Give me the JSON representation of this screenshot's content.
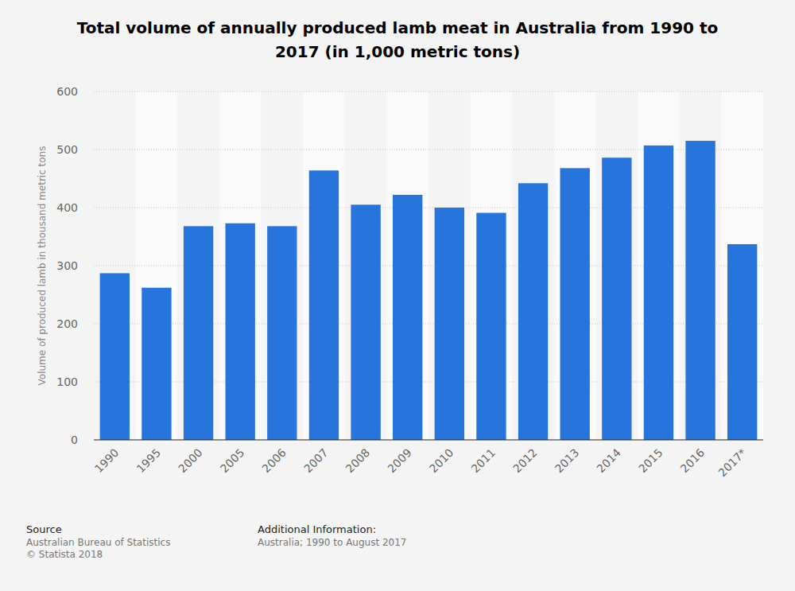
{
  "chart_data": {
    "type": "bar",
    "title": "Total volume of annually produced lamb meat in Australia from 1990 to 2017 (in 1,000 metric tons)",
    "y_label": "Volume of produced lamb in thousand metric tons",
    "categories": [
      "1990",
      "1995",
      "2000",
      "2005",
      "2006",
      "2007",
      "2008",
      "2009",
      "2010",
      "2011",
      "2012",
      "2013",
      "2014",
      "2015",
      "2016",
      "2017*"
    ],
    "values": [
      287,
      262,
      368,
      373,
      368,
      464,
      405,
      422,
      400,
      391,
      442,
      468,
      486,
      507,
      515,
      337
    ],
    "color": "#2874dd",
    "ylim": [
      0,
      600
    ],
    "yticks": [
      0,
      100,
      200,
      300,
      400,
      500,
      600
    ],
    "grid": true,
    "annotations": [
      "Source",
      "Australian Bureau of Statistics",
      "© Statista 2018",
      "Additional Information:",
      "Australia; 1990 to August 2017"
    ]
  }
}
